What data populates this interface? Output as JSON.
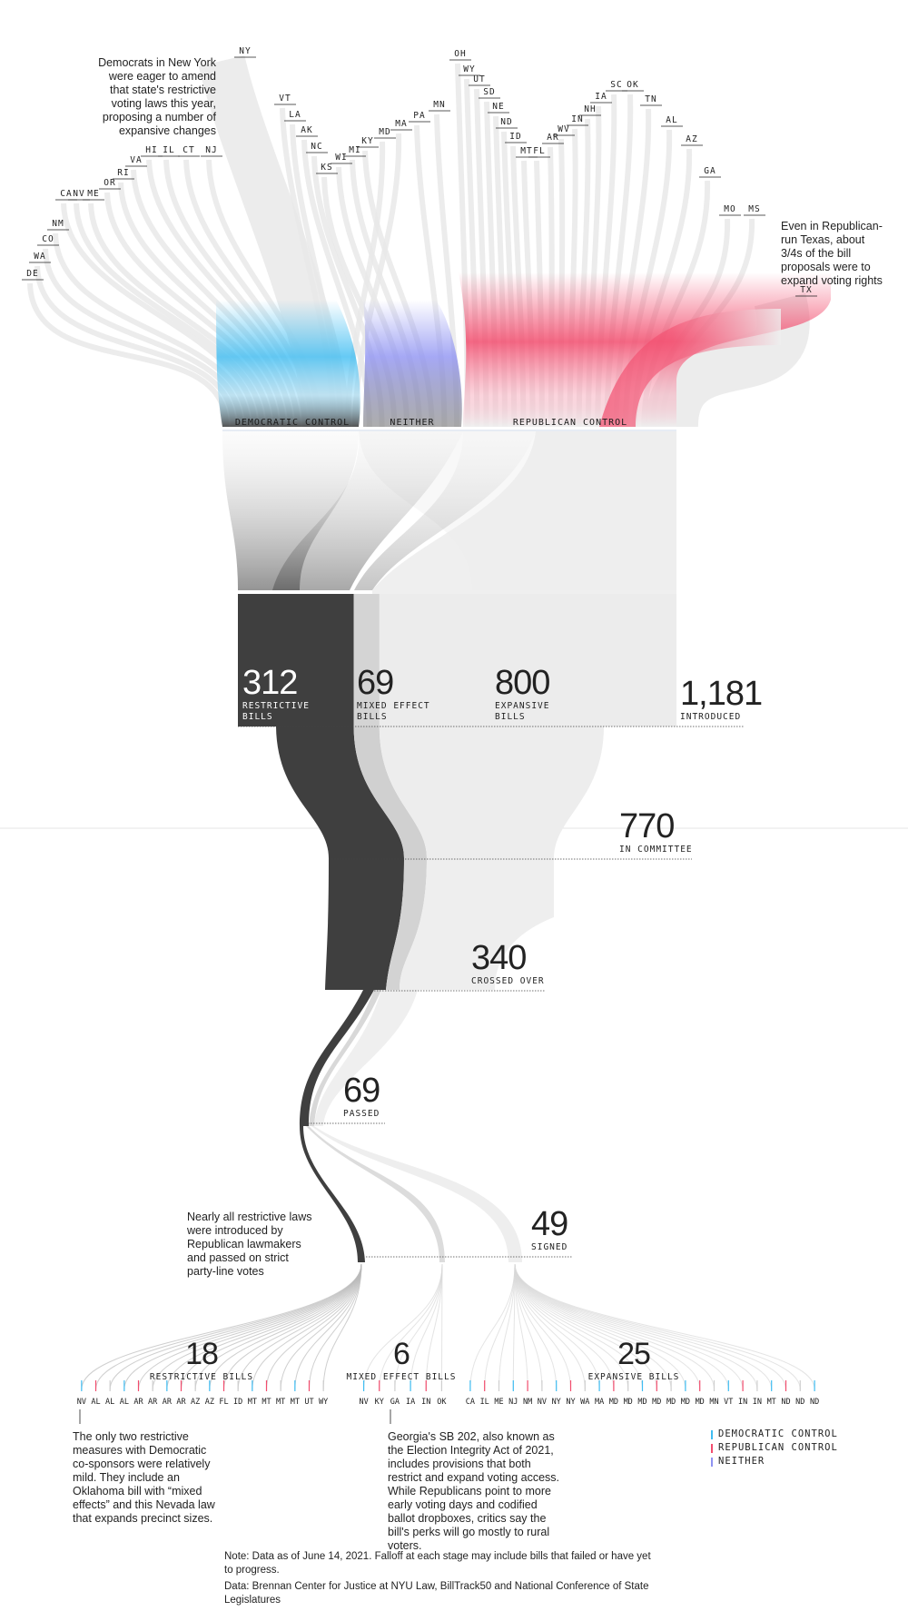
{
  "chart_data": {
    "type": "sankey",
    "sources": [
      {
        "group": "DEMOCRATIC CONTROL",
        "color": "#3fbdf2"
      },
      {
        "group": "NEITHER",
        "color": "#8f93f2"
      },
      {
        "group": "REPUBLICAN CONTROL",
        "color": "#f24d6e"
      }
    ],
    "states": [
      "DE",
      "WA",
      "CO",
      "NM",
      "CA",
      "NV",
      "ME",
      "OR",
      "RI",
      "VA",
      "HI",
      "IL",
      "CT",
      "NJ",
      "NY",
      "VT",
      "LA",
      "AK",
      "NC",
      "KS",
      "WI",
      "MI",
      "KY",
      "MD",
      "MA",
      "PA",
      "MN",
      "OH",
      "WY",
      "UT",
      "SD",
      "NE",
      "ND",
      "ID",
      "MT",
      "FL",
      "AR",
      "WV",
      "IN",
      "NH",
      "IA",
      "SC",
      "OK",
      "TN",
      "AL",
      "AZ",
      "GA",
      "MO",
      "MS",
      "TX"
    ],
    "bill_types": [
      {
        "label": "RESTRICTIVE BILLS",
        "value": 312
      },
      {
        "label": "MIXED EFFECT BILLS",
        "value": 69
      },
      {
        "label": "EXPANSIVE BILLS",
        "value": 800
      }
    ],
    "stages": [
      {
        "label": "INTRODUCED",
        "value": 1181,
        "display": "1,181"
      },
      {
        "label": "IN COMMITTEE",
        "value": 770,
        "display": "770"
      },
      {
        "label": "CROSSED OVER",
        "value": 340,
        "display": "340"
      },
      {
        "label": "PASSED",
        "value": 69,
        "display": "69"
      },
      {
        "label": "SIGNED",
        "value": 49,
        "display": "49"
      }
    ],
    "signed_by_type": [
      {
        "label": "RESTRICTIVE BILLS",
        "value": 18,
        "states": [
          "NV",
          "AL",
          "AL",
          "AL",
          "AR",
          "AR",
          "AR",
          "AR",
          "AZ",
          "AZ",
          "FL",
          "ID",
          "MT",
          "MT",
          "MT",
          "MT",
          "UT",
          "WY"
        ]
      },
      {
        "label": "MIXED EFFECT BILLS",
        "value": 6,
        "states": [
          "NV",
          "KY",
          "GA",
          "IA",
          "IN",
          "OK"
        ]
      },
      {
        "label": "EXPANSIVE BILLS",
        "value": 25,
        "states": [
          "CA",
          "IL",
          "ME",
          "NJ",
          "NM",
          "NV",
          "NY",
          "NY",
          "WA",
          "MA",
          "MD",
          "MD",
          "MD",
          "MD",
          "MD",
          "MD",
          "MD",
          "MN",
          "VT",
          "IN",
          "IN",
          "MT",
          "ND",
          "ND",
          "ND"
        ]
      }
    ],
    "legend": [
      {
        "label": "DEMOCRATIC CONTROL",
        "color": "#3fbdf2"
      },
      {
        "label": "REPUBLICAN CONTROL",
        "color": "#f24d6e"
      },
      {
        "label": "NEITHER",
        "color": "#8f93f2"
      }
    ]
  },
  "annotations": {
    "ny": "Democrats in New York were eager to amend that state's restrictive voting laws this year, proposing a number of expansive changes",
    "tx": "Even in Republican-run Texas, about 3/4s of the bill proposals were to expand voting rights",
    "restrictive": "Nearly all restrictive laws were introduced by Republican lawmakers and passed on strict party-line votes",
    "democratic_cosponsors": "The only two restrictive measures with Democratic co-sponsors were relatively mild. They include an Oklahoma bill with “mixed effects” and this Nevada law that expands precinct sizes.",
    "georgia": "Georgia's SB 202, also known as the Election Integrity Act of 2021, includes provisions that both restrict and expand voting access. While Republicans point to more early voting days and codified ballot dropboxes, critics say the bill's perks will go mostly to rural voters."
  },
  "note": "Note: Data as of June 14, 2021. Falloff at each stage may include bills that failed or have yet to progress.",
  "source": "Data: Brennan Center for Justice at NYU Law, BillTrack50 and National Conference of State Legislatures"
}
